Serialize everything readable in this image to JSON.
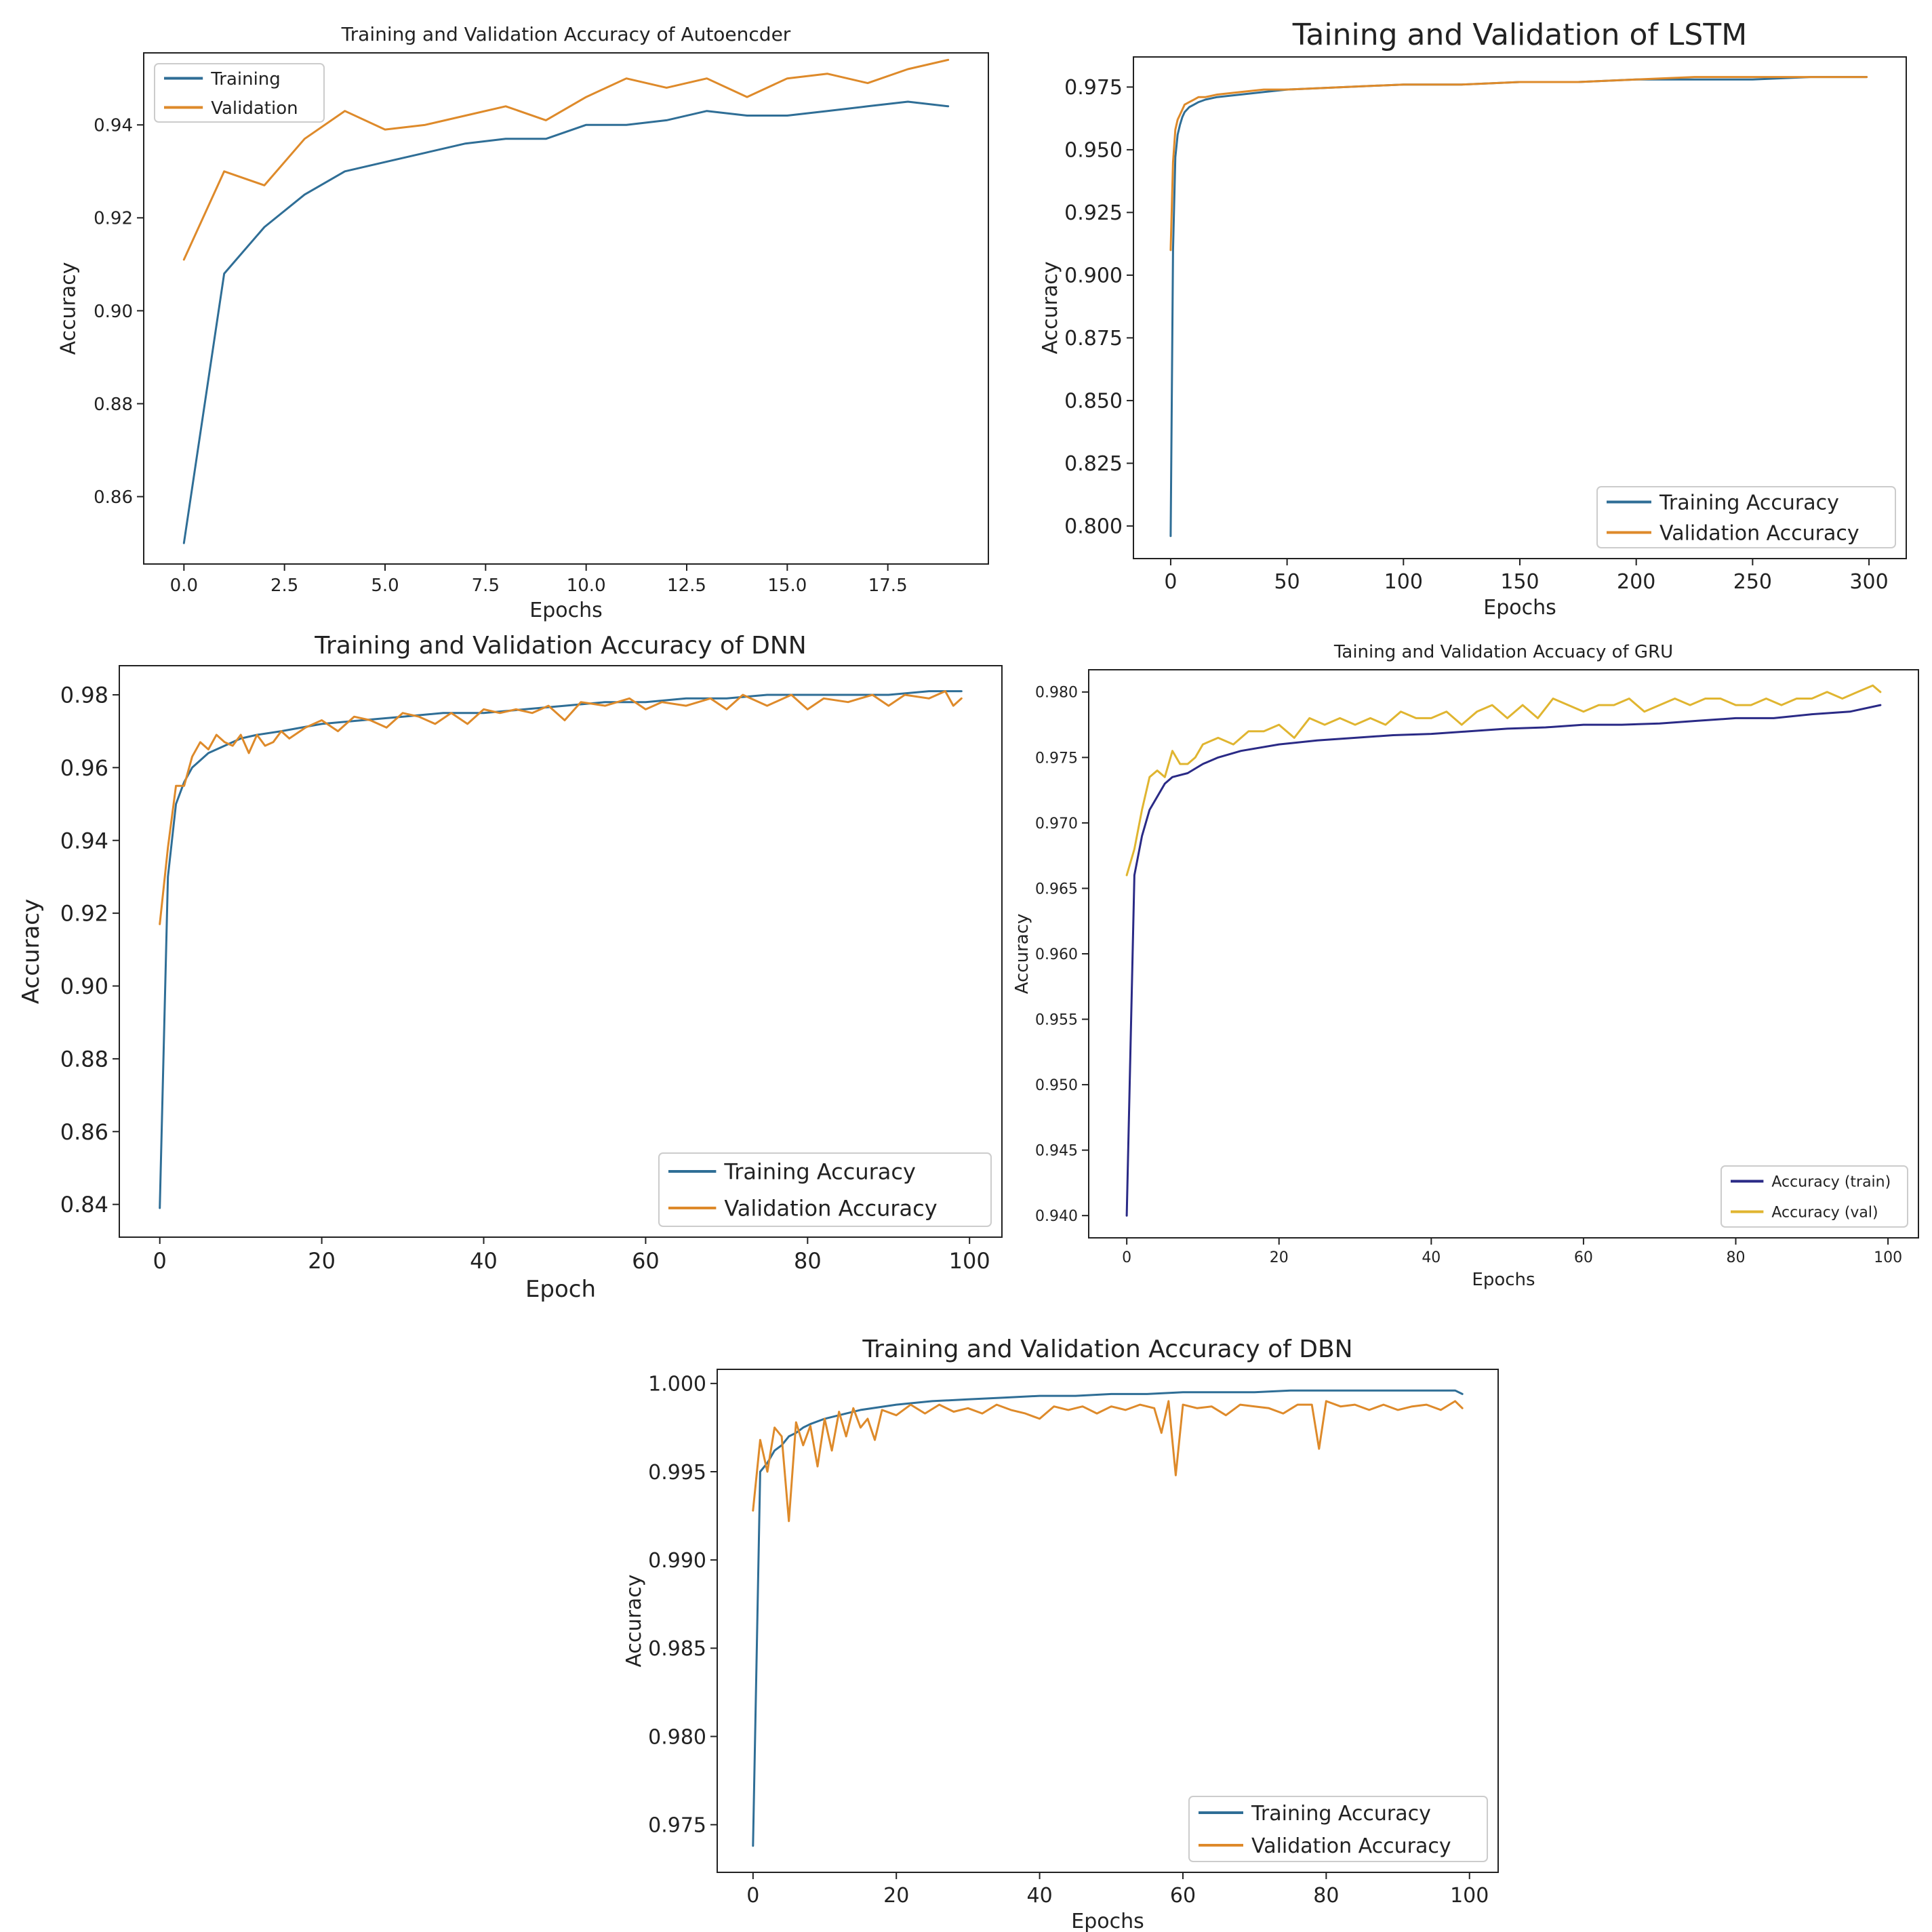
{
  "chart_data": [
    {
      "id": "autoencoder",
      "type": "line",
      "title": "Training and Validation Accuracy of Autoencder",
      "xlabel": "Epochs",
      "ylabel": "Accuracy",
      "xlim": [
        -1.0,
        20.0
      ],
      "ylim": [
        0.8455,
        0.9555
      ],
      "xticks": [
        0.0,
        2.5,
        5.0,
        7.5,
        10.0,
        12.5,
        15.0,
        17.5
      ],
      "xtick_labels": [
        "0.0",
        "2.5",
        "5.0",
        "7.5",
        "10.0",
        "12.5",
        "15.0",
        "17.5"
      ],
      "yticks": [
        0.86,
        0.88,
        0.9,
        0.92,
        0.94
      ],
      "ytick_labels": [
        "0.86",
        "0.88",
        "0.90",
        "0.92",
        "0.94"
      ],
      "legend": "upper left",
      "series": [
        {
          "name": "Training",
          "color": "#2f6e96",
          "x": [
            0,
            1,
            2,
            3,
            4,
            5,
            6,
            7,
            8,
            9,
            10,
            11,
            12,
            13,
            14,
            15,
            16,
            17,
            18,
            19
          ],
          "values": [
            0.85,
            0.908,
            0.918,
            0.925,
            0.93,
            0.932,
            0.934,
            0.936,
            0.937,
            0.937,
            0.94,
            0.94,
            0.941,
            0.943,
            0.942,
            0.942,
            0.943,
            0.944,
            0.945,
            0.944
          ]
        },
        {
          "name": "Validation",
          "color": "#de8a2a",
          "x": [
            0,
            1,
            2,
            3,
            4,
            5,
            6,
            7,
            8,
            9,
            10,
            11,
            12,
            13,
            14,
            15,
            16,
            17,
            18,
            19
          ],
          "values": [
            0.911,
            0.93,
            0.927,
            0.937,
            0.943,
            0.939,
            0.94,
            0.942,
            0.944,
            0.941,
            0.946,
            0.95,
            0.948,
            0.95,
            0.946,
            0.95,
            0.951,
            0.949,
            0.952,
            0.954
          ]
        }
      ]
    },
    {
      "id": "lstm",
      "type": "line",
      "title": "Taining and Validation of LSTM",
      "xlabel": "Epochs",
      "ylabel": "Accuracy",
      "xlim": [
        -16,
        316
      ],
      "ylim": [
        0.787,
        0.987
      ],
      "xticks": [
        0,
        50,
        100,
        150,
        200,
        250,
        300
      ],
      "xtick_labels": [
        "0",
        "50",
        "100",
        "150",
        "200",
        "250",
        "300"
      ],
      "yticks": [
        0.8,
        0.825,
        0.85,
        0.875,
        0.9,
        0.925,
        0.95,
        0.975
      ],
      "ytick_labels": [
        "0.800",
        "0.825",
        "0.850",
        "0.875",
        "0.900",
        "0.925",
        "0.950",
        "0.975"
      ],
      "legend": "lower right",
      "series": [
        {
          "name": "Training Accuracy",
          "color": "#2f6e96",
          "x": [
            0,
            1,
            2,
            3,
            4,
            5,
            6,
            8,
            10,
            12,
            15,
            20,
            30,
            40,
            50,
            75,
            100,
            125,
            150,
            175,
            200,
            225,
            250,
            275,
            299
          ],
          "values": [
            0.796,
            0.91,
            0.947,
            0.956,
            0.96,
            0.963,
            0.965,
            0.967,
            0.968,
            0.969,
            0.97,
            0.971,
            0.972,
            0.973,
            0.974,
            0.975,
            0.976,
            0.976,
            0.977,
            0.977,
            0.978,
            0.978,
            0.978,
            0.979,
            0.979
          ]
        },
        {
          "name": "Validation Accuracy",
          "color": "#de8a2a",
          "x": [
            0,
            1,
            2,
            3,
            4,
            5,
            6,
            8,
            10,
            12,
            15,
            20,
            30,
            40,
            50,
            75,
            100,
            125,
            150,
            175,
            200,
            225,
            250,
            275,
            299
          ],
          "values": [
            0.91,
            0.945,
            0.958,
            0.962,
            0.964,
            0.966,
            0.968,
            0.969,
            0.97,
            0.971,
            0.971,
            0.972,
            0.973,
            0.974,
            0.974,
            0.975,
            0.976,
            0.976,
            0.977,
            0.977,
            0.978,
            0.979,
            0.979,
            0.979,
            0.979
          ]
        }
      ]
    },
    {
      "id": "dnn",
      "type": "line",
      "title": "Training and Validation Accuracy of DNN",
      "xlabel": "Epoch",
      "ylabel": "Accuracy",
      "xlim": [
        -5,
        104
      ],
      "ylim": [
        0.831,
        0.988
      ],
      "xticks": [
        0,
        20,
        40,
        60,
        80,
        100
      ],
      "xtick_labels": [
        "0",
        "20",
        "40",
        "60",
        "80",
        "100"
      ],
      "yticks": [
        0.84,
        0.86,
        0.88,
        0.9,
        0.92,
        0.94,
        0.96,
        0.98
      ],
      "ytick_labels": [
        "0.84",
        "0.86",
        "0.88",
        "0.90",
        "0.92",
        "0.94",
        "0.96",
        "0.98"
      ],
      "legend": "lower right",
      "series": [
        {
          "name": "Training Accuracy",
          "color": "#2f6e96",
          "x": [
            0,
            1,
            2,
            3,
            4,
            5,
            6,
            8,
            10,
            12,
            15,
            20,
            25,
            30,
            35,
            40,
            45,
            50,
            55,
            60,
            65,
            70,
            75,
            80,
            85,
            90,
            95,
            99
          ],
          "values": [
            0.839,
            0.93,
            0.95,
            0.956,
            0.96,
            0.962,
            0.964,
            0.966,
            0.968,
            0.969,
            0.97,
            0.972,
            0.973,
            0.974,
            0.975,
            0.975,
            0.976,
            0.977,
            0.978,
            0.978,
            0.979,
            0.979,
            0.98,
            0.98,
            0.98,
            0.98,
            0.981,
            0.981
          ]
        },
        {
          "name": "Validation Accuracy",
          "color": "#de8a2a",
          "x": [
            0,
            1,
            2,
            3,
            4,
            5,
            6,
            7,
            8,
            9,
            10,
            11,
            12,
            13,
            14,
            15,
            16,
            18,
            20,
            22,
            24,
            26,
            28,
            30,
            32,
            34,
            36,
            38,
            40,
            42,
            44,
            46,
            48,
            50,
            52,
            55,
            58,
            60,
            62,
            65,
            68,
            70,
            72,
            75,
            78,
            80,
            82,
            85,
            88,
            90,
            92,
            95,
            97,
            98,
            99
          ],
          "values": [
            0.917,
            0.938,
            0.955,
            0.955,
            0.963,
            0.967,
            0.965,
            0.969,
            0.967,
            0.966,
            0.969,
            0.964,
            0.969,
            0.966,
            0.967,
            0.97,
            0.968,
            0.971,
            0.973,
            0.97,
            0.974,
            0.973,
            0.971,
            0.975,
            0.974,
            0.972,
            0.975,
            0.972,
            0.976,
            0.975,
            0.976,
            0.975,
            0.977,
            0.973,
            0.978,
            0.977,
            0.979,
            0.976,
            0.978,
            0.977,
            0.979,
            0.976,
            0.98,
            0.977,
            0.98,
            0.976,
            0.979,
            0.978,
            0.98,
            0.977,
            0.98,
            0.979,
            0.981,
            0.977,
            0.979
          ]
        }
      ]
    },
    {
      "id": "gru",
      "type": "line",
      "title": "Taining and Validation Accuacy of GRU",
      "xlabel": "Epochs",
      "ylabel": "Accuracy",
      "xlim": [
        -5,
        104
      ],
      "ylim": [
        0.9383,
        0.9817
      ],
      "xticks": [
        0,
        20,
        40,
        60,
        80,
        100
      ],
      "xtick_labels": [
        "0",
        "20",
        "40",
        "60",
        "80",
        "100"
      ],
      "yticks": [
        0.94,
        0.945,
        0.95,
        0.955,
        0.96,
        0.965,
        0.97,
        0.975,
        0.98
      ],
      "ytick_labels": [
        "0.940",
        "0.945",
        "0.950",
        "0.955",
        "0.960",
        "0.965",
        "0.970",
        "0.975",
        "0.980"
      ],
      "legend": "lower right",
      "series": [
        {
          "name": "Accuracy (train)",
          "color": "#2a2a86",
          "x": [
            0,
            1,
            2,
            3,
            4,
            5,
            6,
            8,
            10,
            12,
            15,
            20,
            25,
            30,
            35,
            40,
            45,
            50,
            55,
            60,
            65,
            70,
            75,
            80,
            85,
            90,
            95,
            99
          ],
          "values": [
            0.94,
            0.966,
            0.969,
            0.971,
            0.972,
            0.973,
            0.9735,
            0.9738,
            0.9745,
            0.975,
            0.9755,
            0.976,
            0.9763,
            0.9765,
            0.9767,
            0.9768,
            0.977,
            0.9772,
            0.9773,
            0.9775,
            0.9775,
            0.9776,
            0.9778,
            0.978,
            0.978,
            0.9783,
            0.9785,
            0.979
          ]
        },
        {
          "name": "Accuracy (val)",
          "color": "#e0b530",
          "x": [
            0,
            1,
            2,
            3,
            4,
            5,
            6,
            7,
            8,
            9,
            10,
            12,
            14,
            16,
            18,
            20,
            22,
            24,
            26,
            28,
            30,
            32,
            34,
            36,
            38,
            40,
            42,
            44,
            46,
            48,
            50,
            52,
            54,
            56,
            58,
            60,
            62,
            64,
            66,
            68,
            70,
            72,
            74,
            76,
            78,
            80,
            82,
            84,
            86,
            88,
            90,
            92,
            94,
            96,
            98,
            99
          ],
          "values": [
            0.966,
            0.968,
            0.971,
            0.9735,
            0.974,
            0.9735,
            0.9755,
            0.9745,
            0.9745,
            0.975,
            0.976,
            0.9765,
            0.976,
            0.977,
            0.977,
            0.9775,
            0.9765,
            0.978,
            0.9775,
            0.978,
            0.9775,
            0.978,
            0.9775,
            0.9785,
            0.978,
            0.978,
            0.9785,
            0.9775,
            0.9785,
            0.979,
            0.978,
            0.979,
            0.978,
            0.9795,
            0.979,
            0.9785,
            0.979,
            0.979,
            0.9795,
            0.9785,
            0.979,
            0.9795,
            0.979,
            0.9795,
            0.9795,
            0.979,
            0.979,
            0.9795,
            0.979,
            0.9795,
            0.9795,
            0.98,
            0.9795,
            0.98,
            0.9805,
            0.98
          ]
        }
      ]
    },
    {
      "id": "dbn",
      "type": "line",
      "title": "Training and Validation Accuracy  of DBN",
      "xlabel": "Epochs",
      "ylabel": "Accuracy",
      "xlim": [
        -5,
        104
      ],
      "ylim": [
        0.9723,
        1.0008
      ],
      "xticks": [
        0,
        20,
        40,
        60,
        80,
        100
      ],
      "xtick_labels": [
        "0",
        "20",
        "40",
        "60",
        "80",
        "100"
      ],
      "yticks": [
        0.975,
        0.98,
        0.985,
        0.99,
        0.995,
        1.0
      ],
      "ytick_labels": [
        "0.975",
        "0.980",
        "0.985",
        "0.990",
        "0.995",
        "1.000"
      ],
      "legend": "lower right",
      "series": [
        {
          "name": "Training Accuracy",
          "color": "#2f6e96",
          "x": [
            0,
            1,
            2,
            3,
            4,
            5,
            6,
            7,
            8,
            10,
            12,
            15,
            20,
            25,
            30,
            35,
            40,
            45,
            50,
            55,
            60,
            65,
            70,
            75,
            80,
            85,
            90,
            95,
            98,
            99
          ],
          "values": [
            0.9738,
            0.995,
            0.9955,
            0.9962,
            0.9965,
            0.997,
            0.9972,
            0.9975,
            0.9977,
            0.998,
            0.9982,
            0.9985,
            0.9988,
            0.999,
            0.9991,
            0.9992,
            0.9993,
            0.9993,
            0.9994,
            0.9994,
            0.9995,
            0.9995,
            0.9995,
            0.9996,
            0.9996,
            0.9996,
            0.9996,
            0.9996,
            0.9996,
            0.9994
          ]
        },
        {
          "name": "Validation Accuracy",
          "color": "#de8a2a",
          "x": [
            0,
            1,
            2,
            3,
            4,
            5,
            6,
            7,
            8,
            9,
            10,
            11,
            12,
            13,
            14,
            15,
            16,
            17,
            18,
            20,
            22,
            24,
            26,
            28,
            30,
            32,
            34,
            36,
            38,
            40,
            42,
            44,
            46,
            48,
            50,
            52,
            54,
            56,
            57,
            58,
            59,
            60,
            62,
            64,
            66,
            68,
            70,
            72,
            74,
            76,
            78,
            79,
            80,
            82,
            84,
            86,
            88,
            90,
            92,
            94,
            96,
            98,
            99
          ],
          "values": [
            0.9928,
            0.9968,
            0.995,
            0.9975,
            0.997,
            0.9922,
            0.9978,
            0.9965,
            0.9976,
            0.9953,
            0.998,
            0.9962,
            0.9984,
            0.997,
            0.9986,
            0.9975,
            0.998,
            0.9968,
            0.9985,
            0.9982,
            0.9988,
            0.9983,
            0.9988,
            0.9984,
            0.9986,
            0.9983,
            0.9988,
            0.9985,
            0.9983,
            0.998,
            0.9987,
            0.9985,
            0.9987,
            0.9983,
            0.9987,
            0.9985,
            0.9988,
            0.9986,
            0.9972,
            0.999,
            0.9948,
            0.9988,
            0.9986,
            0.9987,
            0.9982,
            0.9988,
            0.9987,
            0.9986,
            0.9983,
            0.9988,
            0.9988,
            0.9963,
            0.999,
            0.9987,
            0.9988,
            0.9985,
            0.9988,
            0.9985,
            0.9987,
            0.9988,
            0.9985,
            0.999,
            0.9986
          ]
        }
      ]
    }
  ]
}
